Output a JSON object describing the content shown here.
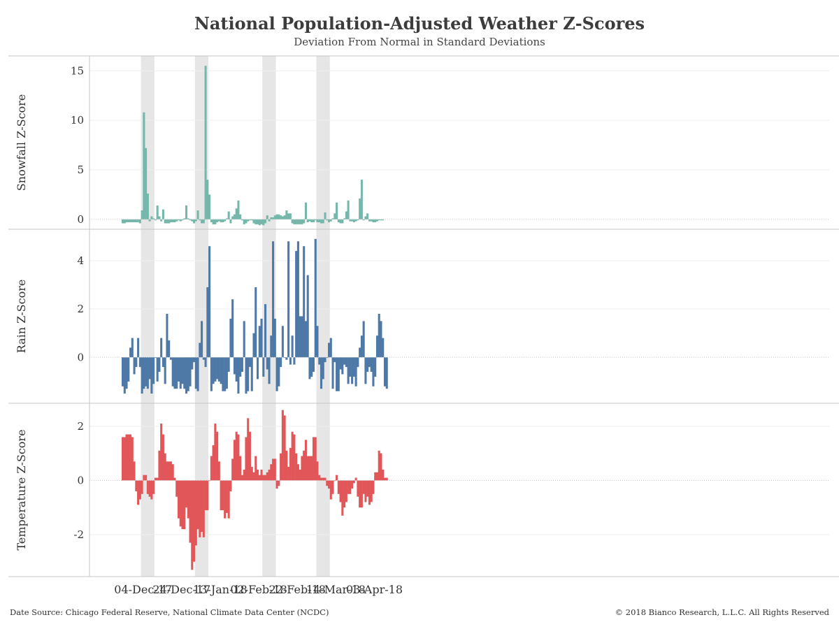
{
  "chart_data": {
    "type": "bar",
    "title": "National Population-Adjusted Weather Z-Scores",
    "subtitle": "Deviation From Normal in Standard Deviations",
    "x_start": "2017-11-27",
    "x_tick_dates": [
      "2017-12-04",
      "2017-12-24",
      "2018-01-13",
      "2018-02-02",
      "2018-02-22",
      "2018-03-14",
      "2018-04-03"
    ],
    "x_tick_labels": [
      "04-Dec-17",
      "24-Dec-17",
      "13-Jan-18",
      "02-Feb-18",
      "22-Feb-18",
      "14-Mar-18",
      "03-Apr-18"
    ],
    "shaded_periods": [
      [
        "2017-12-07",
        "2017-12-14"
      ],
      [
        "2018-01-04",
        "2018-01-11"
      ],
      [
        "2018-02-08",
        "2018-02-15"
      ],
      [
        "2018-03-08",
        "2018-03-15"
      ]
    ],
    "panels": [
      {
        "name": "snowfall",
        "ylabel": "Snowfall Z-Score",
        "ylim": [
          -1,
          16.5
        ],
        "yticks": [
          0,
          5,
          10,
          15
        ],
        "color": "#76b7ab",
        "values": [
          -0.4,
          -0.4,
          -0.3,
          -0.3,
          -0.3,
          -0.3,
          -0.3,
          -0.3,
          -0.3,
          -0.4,
          0.9,
          10.8,
          7.2,
          2.6,
          -0.2,
          0.3,
          0.1,
          -0.1,
          1.4,
          0.3,
          -0.2,
          1.0,
          -0.4,
          -0.4,
          -0.4,
          -0.3,
          -0.3,
          -0.3,
          -0.2,
          -0.1,
          -0.2,
          -0.1,
          0.1,
          1.4,
          0.1,
          -0.1,
          -0.2,
          -0.4,
          -0.2,
          0.9,
          -0.1,
          -0.4,
          -0.4,
          15.5,
          4.0,
          2.5,
          -0.3,
          -0.5,
          -0.5,
          -0.3,
          -0.2,
          -0.3,
          -0.3,
          -0.2,
          0.1,
          0.8,
          -0.4,
          0.3,
          0.5,
          1.1,
          1.9,
          0.5,
          -0.1,
          -0.5,
          -0.4,
          -0.2,
          -0.1,
          -0.1,
          -0.4,
          -0.5,
          -0.5,
          -0.6,
          -0.5,
          -0.6,
          -0.4,
          0.4,
          -0.2,
          0.2,
          0.2,
          0.4,
          0.5,
          0.5,
          0.4,
          0.3,
          0.4,
          0.9,
          0.6,
          0.6,
          -0.4,
          -0.5,
          -0.5,
          -0.5,
          -0.5,
          -0.5,
          -0.4,
          1.7,
          -0.3,
          -0.2,
          -0.3,
          -0.3,
          -0.1,
          -0.3,
          -0.3,
          -0.4,
          -0.4,
          0.7,
          -0.1,
          -0.3,
          -0.2,
          0.1,
          0.6,
          1.7,
          -0.3,
          -0.4,
          -0.4,
          0.1,
          0.8,
          1.9,
          -0.2,
          -0.2,
          -0.3,
          -0.2,
          -0.1,
          2.1,
          4.0,
          -0.1,
          0.3,
          0.6,
          -0.2,
          -0.2,
          -0.3,
          -0.3,
          -0.2,
          -0.1,
          -0.1,
          -0.1
        ]
      },
      {
        "name": "rain",
        "ylabel": "Rain Z-Score",
        "ylim": [
          -1.9,
          5.3
        ],
        "yticks": [
          0,
          2,
          4
        ],
        "color": "#4e79a7",
        "values": [
          -1.2,
          -1.5,
          -1.3,
          -1.0,
          0.4,
          0.8,
          -0.7,
          -0.4,
          0.8,
          -0.4,
          -1.5,
          -1.3,
          -1.2,
          -1.3,
          -0.9,
          -1.5,
          -1.1,
          0.0,
          -1.0,
          -0.6,
          0.8,
          -0.4,
          -1.1,
          1.8,
          0.7,
          -0.1,
          -1.2,
          -1.3,
          -1.3,
          -1.0,
          -1.3,
          -1.1,
          -1.3,
          -1.5,
          -1.4,
          -1.2,
          -0.5,
          -0.2,
          -1.3,
          -1.4,
          0.6,
          1.5,
          -0.1,
          -0.4,
          2.9,
          4.6,
          -1.4,
          -1.1,
          -1.0,
          -0.9,
          -1.0,
          -1.1,
          -1.4,
          -1.4,
          -1.3,
          -0.6,
          1.6,
          2.4,
          -0.7,
          -1.0,
          -1.5,
          -0.8,
          -0.6,
          1.5,
          -1.5,
          -1.4,
          -0.4,
          -1.4,
          1.0,
          2.9,
          -0.9,
          1.3,
          1.6,
          -0.8,
          2.2,
          -0.5,
          -1.1,
          0.9,
          4.8,
          1.6,
          -1.4,
          -1.2,
          -0.4,
          1.3,
          0.0,
          -0.1,
          4.8,
          -0.3,
          0.9,
          -0.3,
          4.4,
          4.8,
          1.7,
          1.7,
          4.6,
          1.5,
          3.4,
          -0.9,
          -0.8,
          -0.6,
          4.9,
          1.3,
          -0.3,
          -1.3,
          -0.9,
          -0.2,
          0.0,
          0.6,
          0.8,
          -1.3,
          -0.2,
          -1.4,
          -1.4,
          -0.5,
          -0.7,
          -0.3,
          -0.4,
          -1.1,
          -0.8,
          -1.1,
          -0.8,
          -1.2,
          -0.4,
          0.4,
          0.9,
          1.5,
          -1.1,
          -0.6,
          -0.4,
          -0.6,
          -1.2,
          -0.8,
          0.9,
          1.8,
          1.5,
          0.8,
          -1.2,
          -1.3
        ]
      },
      {
        "name": "temperature",
        "ylabel": "Temperature Z-Score",
        "ylim": [
          -3.55,
          2.85
        ],
        "yticks": [
          -2,
          0,
          2
        ],
        "color": "#e15759",
        "values": [
          1.6,
          1.6,
          1.7,
          1.7,
          1.7,
          1.6,
          0.7,
          -0.4,
          -0.9,
          -0.7,
          -0.5,
          0.2,
          0.2,
          -0.5,
          -0.6,
          -0.7,
          -0.5,
          0.1,
          0.1,
          1.1,
          2.1,
          1.7,
          1.0,
          0.7,
          0.7,
          0.7,
          0.6,
          0.1,
          -0.6,
          -1.4,
          -1.7,
          -1.8,
          -1.8,
          -1.0,
          -1.4,
          -2.3,
          -3.3,
          -3.0,
          -2.4,
          -1.8,
          -2.1,
          -1.9,
          -2.1,
          -1.1,
          -1.1,
          0.0,
          0.9,
          1.3,
          2.1,
          1.8,
          0.7,
          -1.1,
          -1.1,
          -1.4,
          -1.2,
          -1.4,
          -0.4,
          0.8,
          1.5,
          1.8,
          1.7,
          0.9,
          0.2,
          0.4,
          1.6,
          2.3,
          1.8,
          0.5,
          0.3,
          0.9,
          0.4,
          0.2,
          0.4,
          0.2,
          0.2,
          0.3,
          0.4,
          0.6,
          0.8,
          0.8,
          -0.3,
          -0.2,
          1.0,
          2.6,
          2.4,
          1.1,
          0.5,
          1.2,
          1.8,
          1.7,
          1.0,
          0.6,
          0.4,
          0.9,
          1.1,
          1.5,
          0.9,
          0.9,
          0.9,
          1.6,
          1.6,
          0.7,
          0.2,
          0.1,
          0.1,
          0.1,
          -0.2,
          -0.3,
          -0.7,
          -0.5,
          0.0,
          0.2,
          -0.5,
          -0.8,
          -1.3,
          -1.0,
          -0.8,
          -0.5,
          -0.5,
          -0.3,
          -0.1,
          0.1,
          -0.6,
          -1.0,
          -1.0,
          -0.5,
          -0.8,
          -0.6,
          -0.9,
          -0.8,
          -0.5,
          0.3,
          0.3,
          1.1,
          1.0,
          0.4,
          0.1,
          0.1
        ]
      }
    ]
  },
  "footer": {
    "source": "Date Source: Chicago Federal Reserve, National Climate Data Center (NCDC)",
    "copyright": "© 2018 Bianco Research, L.L.C. All Rights Reserved"
  }
}
